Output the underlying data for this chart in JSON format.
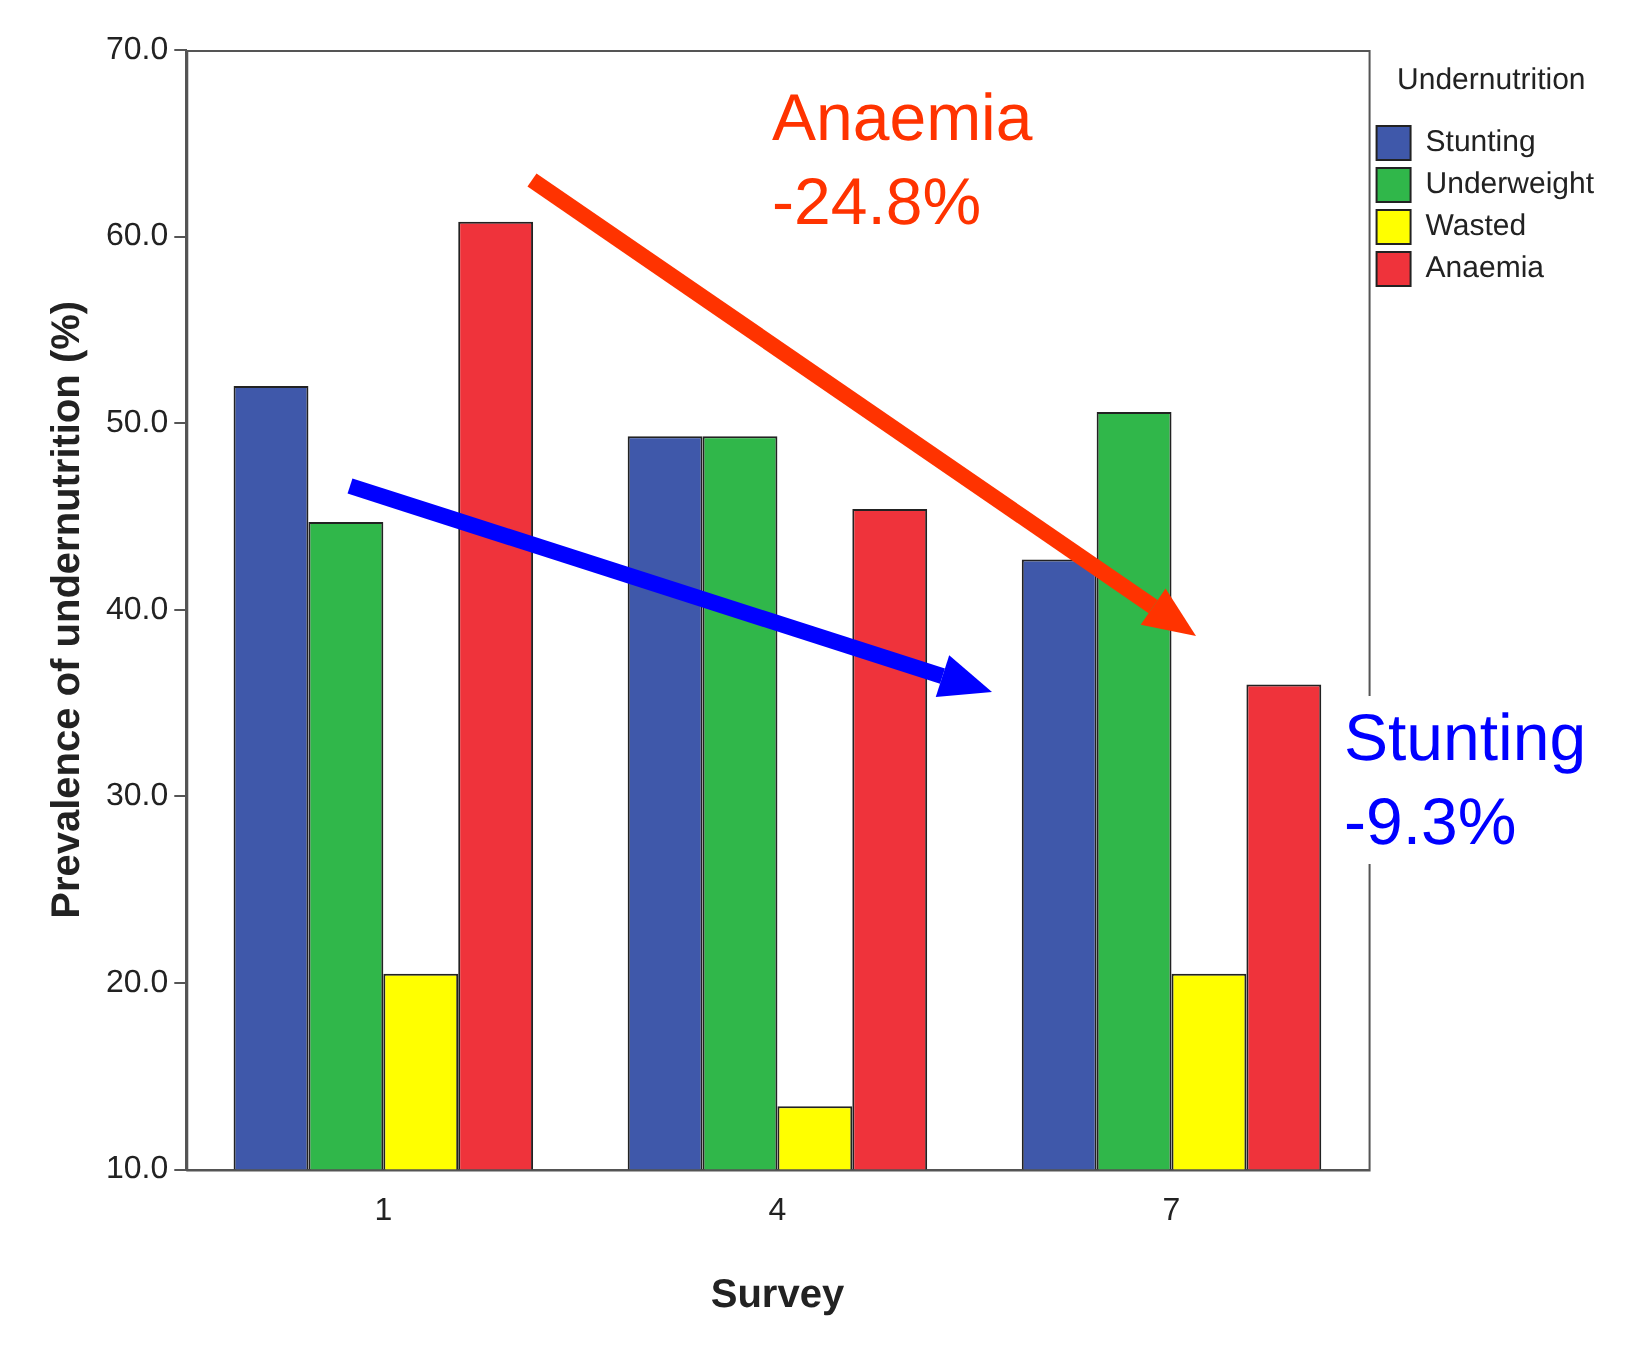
{
  "chart_data": {
    "type": "bar",
    "xlabel": "Survey",
    "ylabel": "Prevalence of undernutrition (%)",
    "legend_title": "Undernutrition",
    "categories": [
      "1",
      "4",
      "7"
    ],
    "series": [
      {
        "name": "Stunting",
        "color": "#3f58aa",
        "values": [
          52.0,
          49.3,
          42.7
        ]
      },
      {
        "name": "Underweight",
        "color": "#30b74a",
        "values": [
          44.7,
          49.3,
          50.6
        ]
      },
      {
        "name": "Wasted",
        "color": "#ffff00",
        "values": [
          20.5,
          13.4,
          20.5
        ]
      },
      {
        "name": "Anaemia",
        "color": "#ef333b",
        "values": [
          60.8,
          45.4,
          36.0
        ]
      }
    ],
    "ylim": [
      10,
      70
    ],
    "yticks": [
      {
        "value": 10,
        "label": "10.0"
      },
      {
        "value": 20,
        "label": "20.0"
      },
      {
        "value": 30,
        "label": "30.0"
      },
      {
        "value": 40,
        "label": "40.0"
      },
      {
        "value": 50,
        "label": "50.0"
      },
      {
        "value": 60,
        "label": "60.0"
      },
      {
        "value": 70,
        "label": "70.0"
      }
    ],
    "grid": false,
    "legend": "top right",
    "annotations": [
      "Anaemia\n-24.8%",
      "Stunting\n-9.3%"
    ]
  }
}
